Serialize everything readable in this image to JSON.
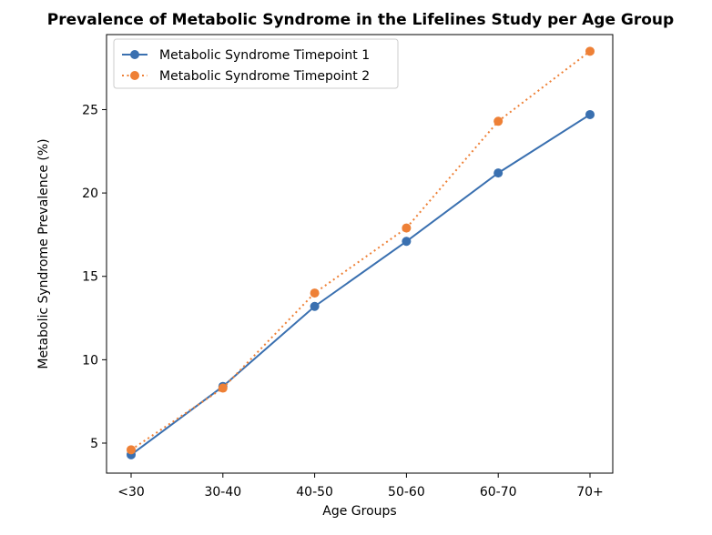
{
  "chart_data": {
    "type": "line",
    "title": "Prevalence of Metabolic Syndrome in the Lifelines Study per Age Group",
    "xlabel": "Age Groups",
    "ylabel": "Metabolic Syndrome Prevalence (%)",
    "categories": [
      "<30",
      "30-40",
      "40-50",
      "50-60",
      "60-70",
      "70+"
    ],
    "yticks": [
      5,
      10,
      15,
      20,
      25
    ],
    "ylim": [
      3.2,
      29.5
    ],
    "grid": false,
    "legend_position": "top-left",
    "series": [
      {
        "name": "Metabolic Syndrome Timepoint 1",
        "values": [
          4.3,
          8.4,
          13.2,
          17.1,
          21.2,
          24.7
        ],
        "color": "#3a70b0",
        "line_style": "solid",
        "marker": "circle"
      },
      {
        "name": "Metabolic Syndrome Timepoint 2",
        "values": [
          4.6,
          8.3,
          14.0,
          17.9,
          24.3,
          28.5
        ],
        "color": "#ee8036",
        "line_style": "dotted",
        "marker": "circle"
      }
    ]
  }
}
